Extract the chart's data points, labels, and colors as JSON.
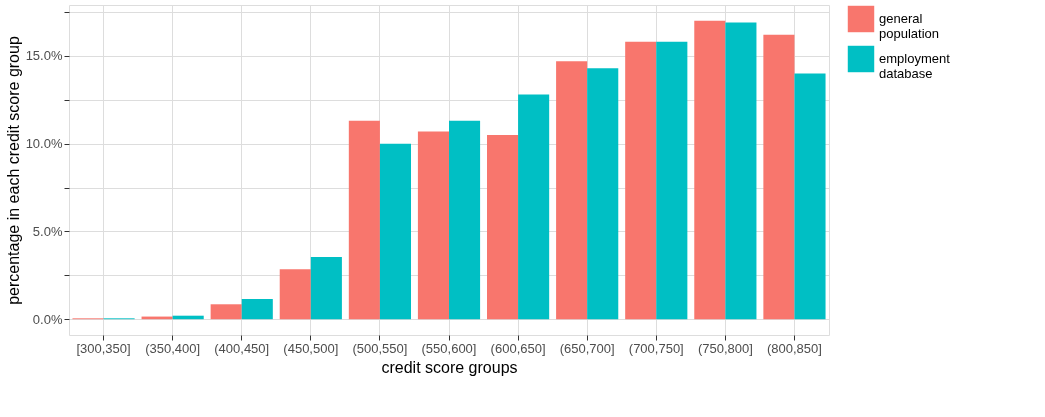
{
  "chart_data": {
    "type": "bar",
    "xlabel": "credit score groups",
    "ylabel": "percentage in each credit score group",
    "categories": [
      "[300,350]",
      "(350,400]",
      "(400,450]",
      "(450,500]",
      "(500,550]",
      "(550,600]",
      "(600,650]",
      "(650,700]",
      "(700,750]",
      "(750,800]",
      "(800,850]"
    ],
    "series": [
      {
        "name": "general population",
        "color": "#f8766d",
        "values": [
          0.05,
          0.15,
          0.85,
          2.85,
          11.3,
          10.7,
          10.5,
          14.7,
          15.8,
          17.0,
          16.2
        ]
      },
      {
        "name": "employment database",
        "color": "#00bfc4",
        "values": [
          0.05,
          0.2,
          1.15,
          3.55,
          10.0,
          11.3,
          12.8,
          14.3,
          15.8,
          16.9,
          14.0
        ]
      }
    ],
    "ylim": [
      -0.9,
      17.9
    ],
    "yticks": [
      {
        "value": 0,
        "label": "0.0%"
      },
      {
        "value": 2.5,
        "label": null
      },
      {
        "value": 5,
        "label": "5.0%"
      },
      {
        "value": 7.5,
        "label": null
      },
      {
        "value": 10,
        "label": "10.0%"
      },
      {
        "value": 12.5,
        "label": null
      },
      {
        "value": 15,
        "label": "15.0%"
      },
      {
        "value": 17.5,
        "label": null
      }
    ],
    "grid": true,
    "legend": "right"
  }
}
